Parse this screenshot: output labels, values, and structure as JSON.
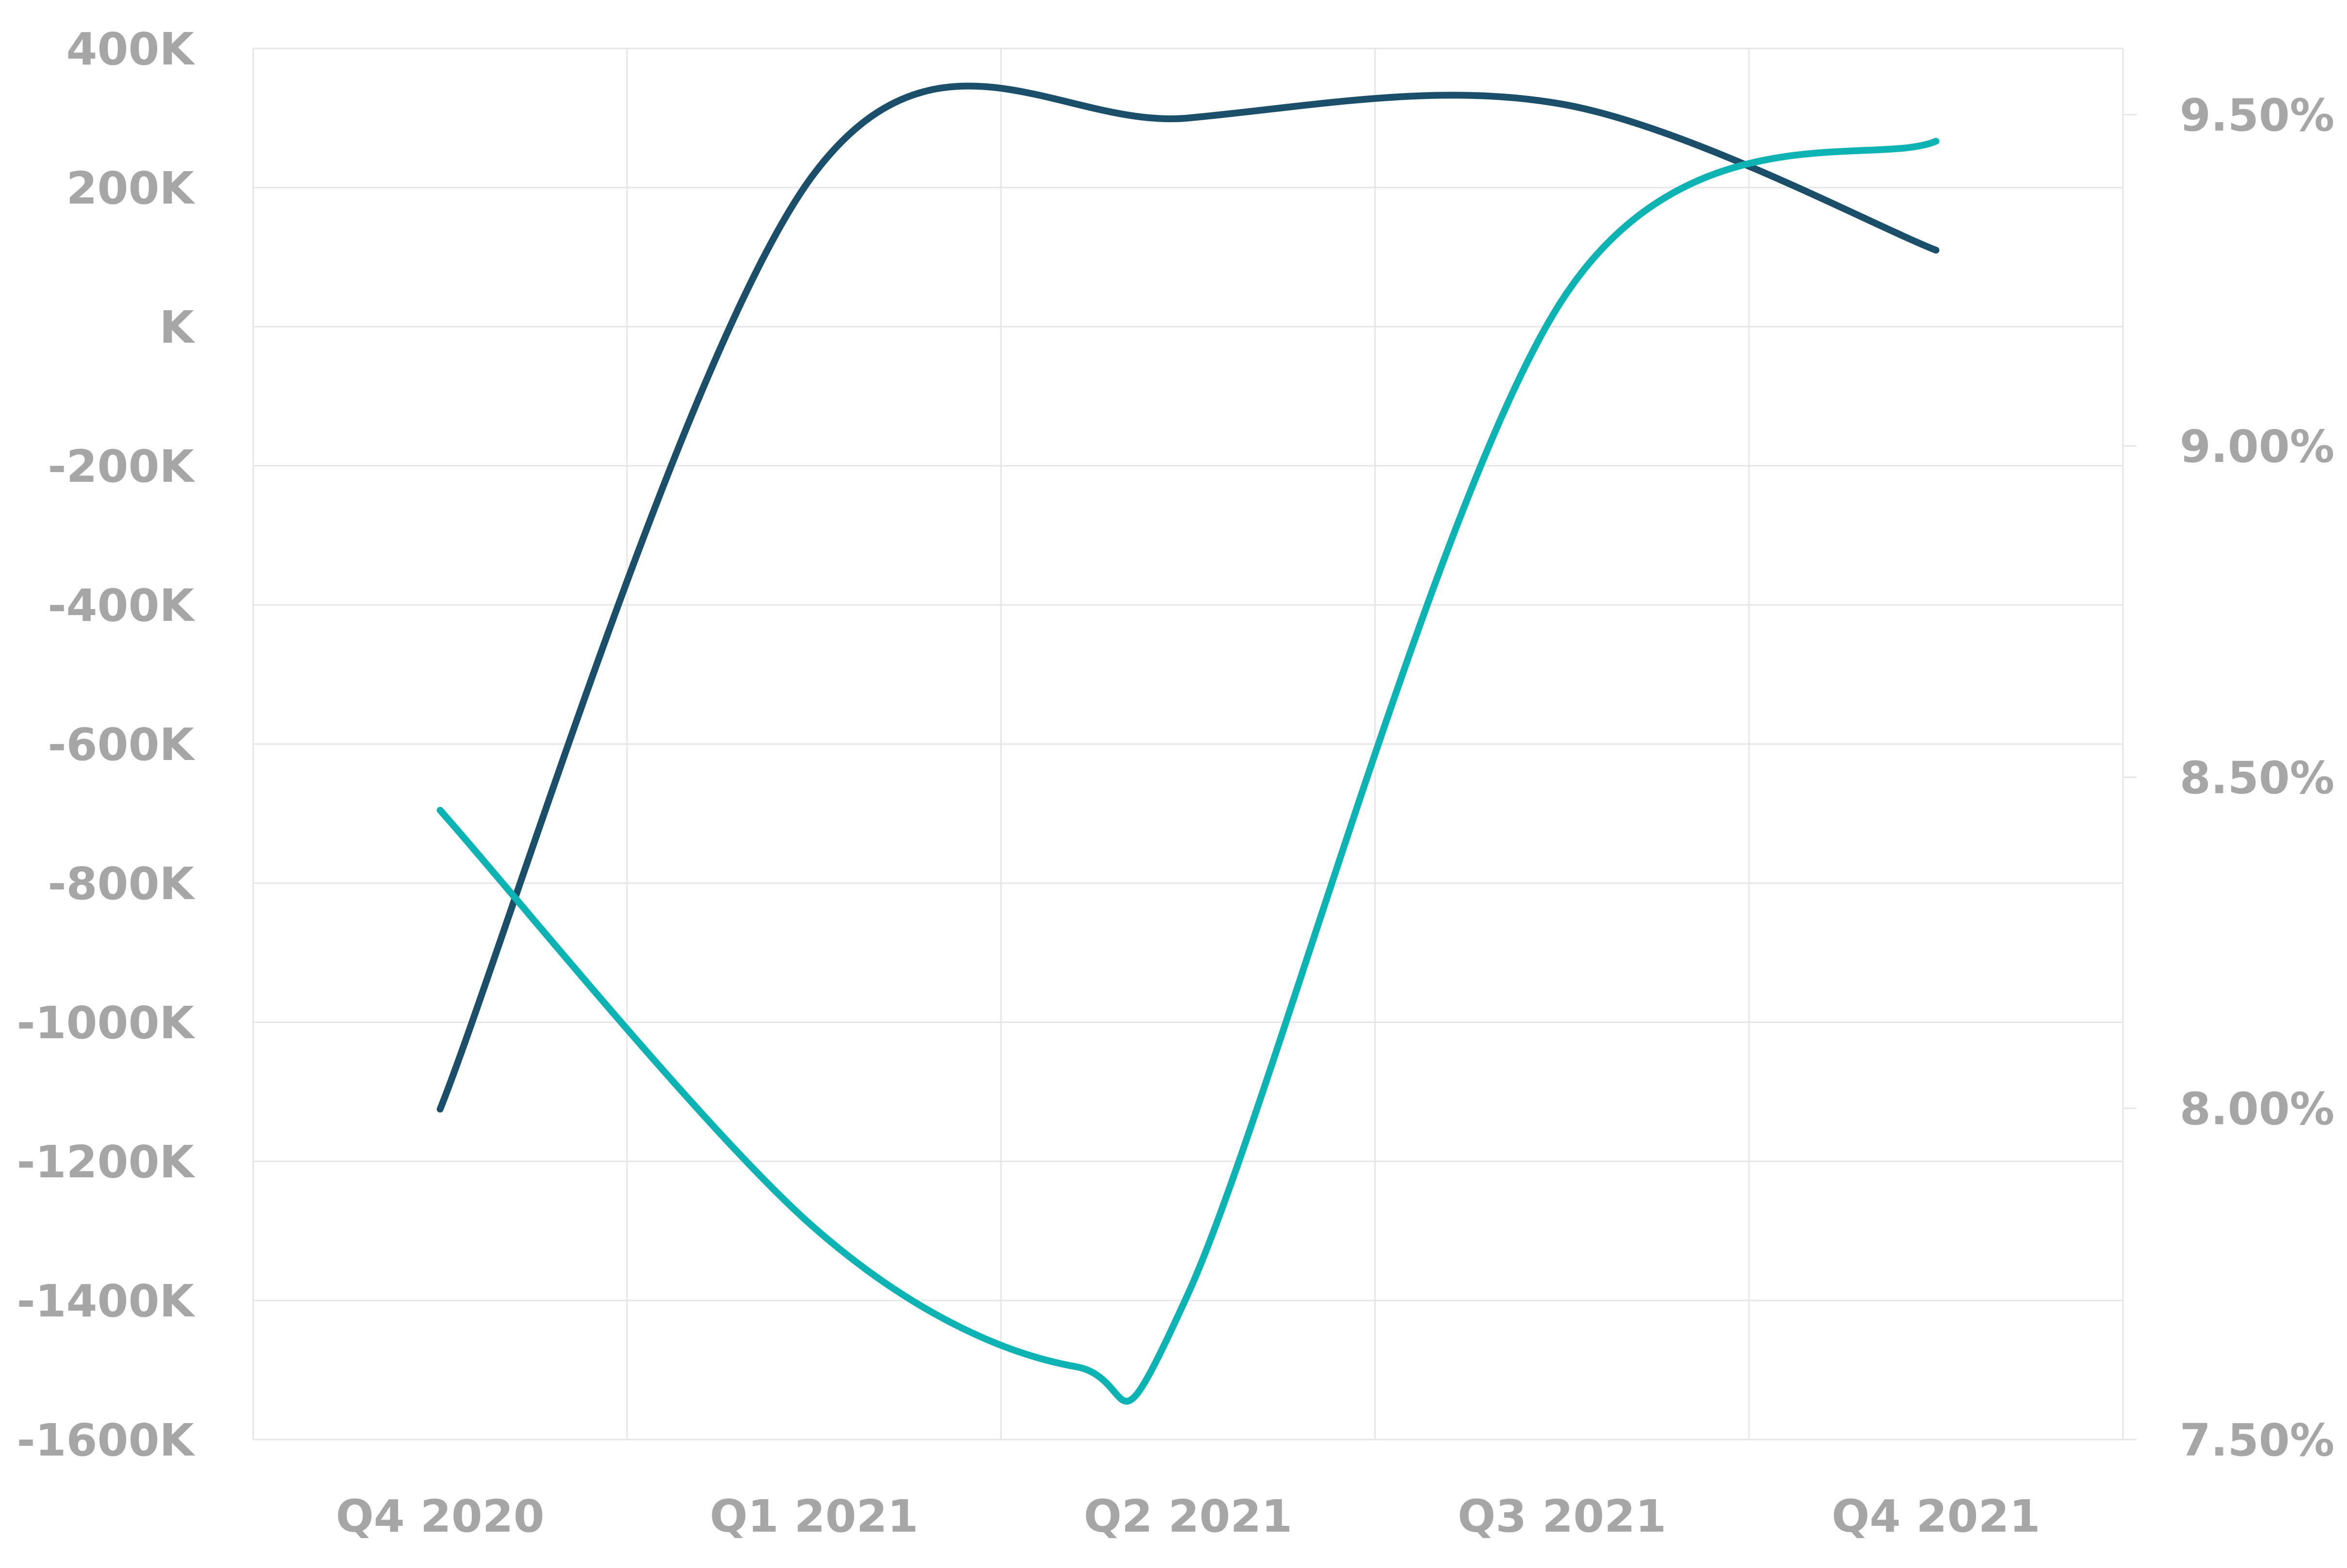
{
  "chart_data": {
    "type": "line",
    "title": "",
    "xlabel": "",
    "ylabel": "",
    "categories": [
      "Q4 2020",
      "Q1 2021",
      "Q2 2021",
      "Q3 2021",
      "Q4 2021"
    ],
    "y_left": {
      "range": [
        -1600000,
        400000
      ],
      "ticks": [
        400000,
        200000,
        0,
        -200000,
        -400000,
        -600000,
        -800000,
        -1000000,
        -1200000,
        -1400000,
        -1600000
      ],
      "tick_labels": [
        "400K",
        "200K",
        "K",
        "-200K",
        "-400K",
        "-600K",
        "-800K",
        "-1000K",
        "-1200K",
        "-1400K",
        "-1600K"
      ]
    },
    "y_right": {
      "range": [
        7.5,
        9.6
      ],
      "ticks": [
        9.5,
        9.0,
        8.5,
        8.0,
        7.5
      ],
      "tick_labels": [
        "9.50%",
        "9.00%",
        "8.50%",
        "8.00%",
        "7.50%"
      ]
    },
    "series": [
      {
        "axis": "left",
        "color": "#1b4f69",
        "values": [
          -1125000,
          220000,
          300000,
          320000,
          110000
        ]
      },
      {
        "axis": "right",
        "color": "#0db3b3",
        "values": [
          8.45,
          7.82,
          7.72,
          9.22,
          9.46
        ]
      }
    ],
    "extra_points": [
      {
        "series": 1,
        "between": [
          "Q1 2021",
          "Q2 2021"
        ],
        "x_fraction": 0.7,
        "value": 7.61
      }
    ],
    "grid": true,
    "legend": "none"
  }
}
